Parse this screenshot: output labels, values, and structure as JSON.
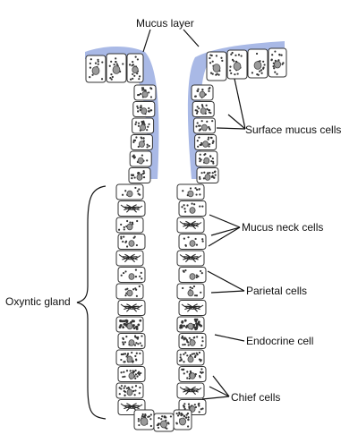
{
  "labels": {
    "mucus_layer": "Mucus layer",
    "surface_mucus_cells": "Surface mucus cells",
    "mucus_neck_cells": "Mucus neck cells",
    "parietal_cells": "Parietal cells",
    "endocrine_cell": "Endocrine cell",
    "chief_cells": "Chief cells",
    "oxyntic_gland": "Oxyntic gland"
  },
  "colors": {
    "mucus": "#a9b9e6",
    "cell_outline": "#333333",
    "nucleus": "#9a9a9a",
    "leader_line": "#111111"
  },
  "cell_types": {
    "left_wall": [
      "mucus",
      "mucus",
      "mucus",
      "mucus",
      "mucus",
      "mucus",
      "neck",
      "parietal",
      "neck",
      "neck",
      "parietal",
      "neck",
      "neck",
      "parietal",
      "endocrine",
      "chief",
      "chief",
      "chief",
      "chief",
      "parietal"
    ],
    "right_wall": [
      "mucus",
      "mucus",
      "mucus",
      "mucus",
      "mucus",
      "mucus",
      "neck",
      "neck",
      "parietal",
      "neck",
      "parietal",
      "neck",
      "neck",
      "parietal",
      "endocrine",
      "chief",
      "chief",
      "chief",
      "parietal",
      "chief"
    ]
  }
}
